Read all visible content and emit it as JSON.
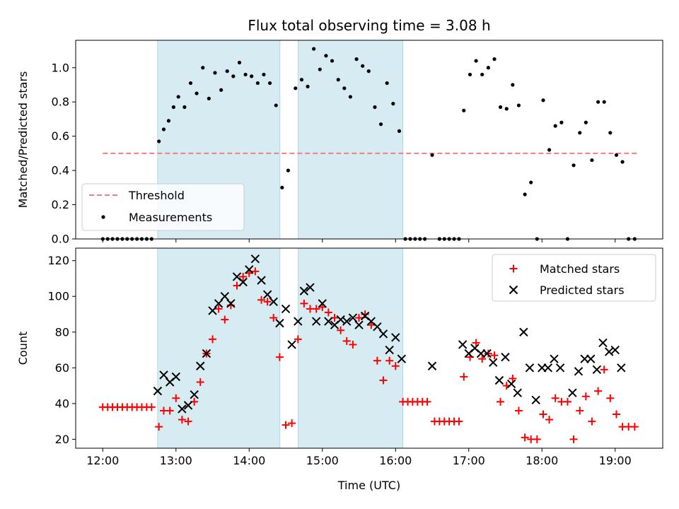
{
  "chart_data": {
    "type": "scatter",
    "title": "Flux total observing time = 3.08 h",
    "xlabel": "Time (UTC)",
    "x_ticks": [
      12,
      13,
      14,
      15,
      16,
      17,
      18,
      19
    ],
    "x_tick_labels": [
      "12:00",
      "13:00",
      "14:00",
      "15:00",
      "16:00",
      "17:00",
      "18:00",
      "19:00"
    ],
    "xlim": [
      11.63,
      19.65
    ],
    "observing_windows": [
      [
        12.75,
        14.42
      ],
      [
        14.67,
        16.1
      ]
    ],
    "window_color": "#add8e6",
    "top": {
      "ylabel": "Matched/Predicted stars",
      "ylim": [
        0,
        1.16
      ],
      "y_ticks": [
        0.0,
        0.2,
        0.4,
        0.6,
        0.8,
        1.0
      ],
      "y_tick_labels": [
        "0.0",
        "0.2",
        "0.4",
        "0.6",
        "0.8",
        "1.0"
      ],
      "threshold": {
        "name": "Threshold",
        "value": 0.5,
        "x_range": [
          12.0,
          19.3
        ],
        "color": "#f08080"
      },
      "measurements": {
        "name": "Measurements",
        "color": "#000000",
        "points": [
          [
            12.0,
            0
          ],
          [
            12.067,
            0
          ],
          [
            12.133,
            0
          ],
          [
            12.2,
            0
          ],
          [
            12.267,
            0
          ],
          [
            12.333,
            0
          ],
          [
            12.4,
            0
          ],
          [
            12.467,
            0
          ],
          [
            12.533,
            0
          ],
          [
            12.6,
            0
          ],
          [
            12.667,
            0
          ],
          [
            12.767,
            0.57
          ],
          [
            12.833,
            0.64
          ],
          [
            12.9,
            0.69
          ],
          [
            12.967,
            0.77
          ],
          [
            13.033,
            0.83
          ],
          [
            13.117,
            0.77
          ],
          [
            13.2,
            0.91
          ],
          [
            13.283,
            0.85
          ],
          [
            13.367,
            1.0
          ],
          [
            13.45,
            0.82
          ],
          [
            13.533,
            0.97
          ],
          [
            13.617,
            0.87
          ],
          [
            13.7,
            0.98
          ],
          [
            13.783,
            0.95
          ],
          [
            13.867,
            1.03
          ],
          [
            13.95,
            0.96
          ],
          [
            14.033,
            0.95
          ],
          [
            14.117,
            0.91
          ],
          [
            14.2,
            0.96
          ],
          [
            14.283,
            0.91
          ],
          [
            14.367,
            0.78
          ],
          [
            14.45,
            0.3
          ],
          [
            14.533,
            0.4
          ],
          [
            14.633,
            0.88
          ],
          [
            14.717,
            0.93
          ],
          [
            14.8,
            0.89
          ],
          [
            14.883,
            1.11
          ],
          [
            14.967,
            0.99
          ],
          [
            15.05,
            1.07
          ],
          [
            15.133,
            1.04
          ],
          [
            15.217,
            0.93
          ],
          [
            15.3,
            0.88
          ],
          [
            15.383,
            0.83
          ],
          [
            15.467,
            1.05
          ],
          [
            15.55,
            1.01
          ],
          [
            15.633,
            0.98
          ],
          [
            15.717,
            0.77
          ],
          [
            15.8,
            0.67
          ],
          [
            15.883,
            0.91
          ],
          [
            15.967,
            0.79
          ],
          [
            16.05,
            0.63
          ],
          [
            16.133,
            0
          ],
          [
            16.2,
            0
          ],
          [
            16.267,
            0
          ],
          [
            16.333,
            0
          ],
          [
            16.4,
            0
          ],
          [
            16.5,
            0.49
          ],
          [
            16.6,
            0
          ],
          [
            16.667,
            0
          ],
          [
            16.733,
            0
          ],
          [
            16.8,
            0
          ],
          [
            16.867,
            0
          ],
          [
            16.933,
            0.75
          ],
          [
            17.017,
            0.96
          ],
          [
            17.1,
            1.04
          ],
          [
            17.183,
            0.96
          ],
          [
            17.267,
            1.0
          ],
          [
            17.35,
            1.05
          ],
          [
            17.433,
            0.77
          ],
          [
            17.517,
            0.76
          ],
          [
            17.6,
            0.9
          ],
          [
            17.683,
            0.78
          ],
          [
            17.767,
            0.26
          ],
          [
            17.85,
            0.33
          ],
          [
            17.933,
            0
          ],
          [
            18.017,
            0.81
          ],
          [
            18.1,
            0.52
          ],
          [
            18.183,
            0.66
          ],
          [
            18.267,
            0.68
          ],
          [
            18.35,
            0
          ],
          [
            18.433,
            0.43
          ],
          [
            18.517,
            0.62
          ],
          [
            18.6,
            0.68
          ],
          [
            18.683,
            0.46
          ],
          [
            18.767,
            0.8
          ],
          [
            18.85,
            0.8
          ],
          [
            18.933,
            0.62
          ],
          [
            19.017,
            0.49
          ],
          [
            19.1,
            0.45
          ],
          [
            19.183,
            0
          ],
          [
            19.267,
            0
          ]
        ]
      },
      "legend_position": "lower left"
    },
    "bottom": {
      "ylabel": "Count",
      "ylim": [
        15,
        127
      ],
      "y_ticks": [
        20,
        40,
        60,
        80,
        100,
        120
      ],
      "y_tick_labels": [
        "20",
        "40",
        "60",
        "80",
        "100",
        "120"
      ],
      "legend_position": "upper right",
      "series": [
        {
          "name": "Matched stars",
          "marker": "+",
          "color": "#ff0000",
          "points": [
            [
              12.0,
              38
            ],
            [
              12.067,
              38
            ],
            [
              12.133,
              38
            ],
            [
              12.2,
              38
            ],
            [
              12.267,
              38
            ],
            [
              12.333,
              38
            ],
            [
              12.4,
              38
            ],
            [
              12.467,
              38
            ],
            [
              12.533,
              38
            ],
            [
              12.6,
              38
            ],
            [
              12.667,
              38
            ],
            [
              12.767,
              27
            ],
            [
              12.833,
              36
            ],
            [
              12.917,
              36
            ],
            [
              13.0,
              43
            ],
            [
              13.083,
              31
            ],
            [
              13.167,
              30
            ],
            [
              13.25,
              41
            ],
            [
              13.333,
              52
            ],
            [
              13.417,
              68
            ],
            [
              13.5,
              76
            ],
            [
              13.583,
              93
            ],
            [
              13.667,
              87
            ],
            [
              13.75,
              95
            ],
            [
              13.833,
              106
            ],
            [
              13.917,
              111
            ],
            [
              14.0,
              113
            ],
            [
              14.083,
              114
            ],
            [
              14.167,
              98
            ],
            [
              14.25,
              97
            ],
            [
              14.333,
              88
            ],
            [
              14.417,
              66
            ],
            [
              14.5,
              28
            ],
            [
              14.583,
              29
            ],
            [
              14.667,
              76
            ],
            [
              14.75,
              96
            ],
            [
              14.833,
              93
            ],
            [
              14.917,
              93
            ],
            [
              15.0,
              94
            ],
            [
              15.083,
              91
            ],
            [
              15.167,
              88
            ],
            [
              15.25,
              81
            ],
            [
              15.333,
              75
            ],
            [
              15.417,
              73
            ],
            [
              15.5,
              88
            ],
            [
              15.583,
              90
            ],
            [
              15.667,
              84
            ],
            [
              15.75,
              64
            ],
            [
              15.833,
              53
            ],
            [
              15.917,
              64
            ],
            [
              16.0,
              61
            ],
            [
              16.1,
              41
            ],
            [
              16.167,
              41
            ],
            [
              16.233,
              41
            ],
            [
              16.3,
              41
            ],
            [
              16.367,
              41
            ],
            [
              16.433,
              41
            ],
            [
              16.533,
              30
            ],
            [
              16.6,
              30
            ],
            [
              16.667,
              30
            ],
            [
              16.733,
              30
            ],
            [
              16.8,
              30
            ],
            [
              16.867,
              30
            ],
            [
              16.933,
              55
            ],
            [
              17.017,
              66
            ],
            [
              17.1,
              74
            ],
            [
              17.183,
              65
            ],
            [
              17.267,
              68
            ],
            [
              17.35,
              67
            ],
            [
              17.433,
              41
            ],
            [
              17.517,
              50
            ],
            [
              17.6,
              54
            ],
            [
              17.683,
              36
            ],
            [
              17.767,
              21
            ],
            [
              17.85,
              20
            ],
            [
              17.933,
              20
            ],
            [
              18.017,
              34
            ],
            [
              18.1,
              31
            ],
            [
              18.183,
              43
            ],
            [
              18.267,
              41
            ],
            [
              18.35,
              41
            ],
            [
              18.433,
              20
            ],
            [
              18.517,
              36
            ],
            [
              18.6,
              44
            ],
            [
              18.683,
              30
            ],
            [
              18.767,
              47
            ],
            [
              18.85,
              59
            ],
            [
              18.933,
              43
            ],
            [
              19.017,
              34
            ],
            [
              19.1,
              27
            ],
            [
              19.183,
              27
            ],
            [
              19.267,
              27
            ]
          ]
        },
        {
          "name": "Predicted stars",
          "marker": "x",
          "color": "#000000",
          "points": [
            [
              12.75,
              47
            ],
            [
              12.833,
              56
            ],
            [
              12.917,
              52
            ],
            [
              13.0,
              55
            ],
            [
              13.083,
              37
            ],
            [
              13.167,
              39
            ],
            [
              13.25,
              45
            ],
            [
              13.333,
              61
            ],
            [
              13.417,
              68
            ],
            [
              13.5,
              92
            ],
            [
              13.583,
              96
            ],
            [
              13.667,
              100
            ],
            [
              13.75,
              96
            ],
            [
              13.833,
              111
            ],
            [
              13.917,
              108
            ],
            [
              14.0,
              115
            ],
            [
              14.083,
              121
            ],
            [
              14.167,
              109
            ],
            [
              14.25,
              101
            ],
            [
              14.333,
              97
            ],
            [
              14.417,
              85
            ],
            [
              14.5,
              93
            ],
            [
              14.583,
              73
            ],
            [
              14.667,
              86
            ],
            [
              14.75,
              103
            ],
            [
              14.833,
              105
            ],
            [
              14.917,
              86
            ],
            [
              15.0,
              96
            ],
            [
              15.083,
              86
            ],
            [
              15.167,
              84
            ],
            [
              15.25,
              87
            ],
            [
              15.333,
              86
            ],
            [
              15.417,
              88
            ],
            [
              15.5,
              84
            ],
            [
              15.583,
              89
            ],
            [
              15.667,
              86
            ],
            [
              15.75,
              83
            ],
            [
              15.833,
              79
            ],
            [
              15.917,
              70
            ],
            [
              16.0,
              77
            ],
            [
              16.083,
              65
            ],
            [
              16.5,
              61
            ],
            [
              16.917,
              73
            ],
            [
              17.0,
              68
            ],
            [
              17.083,
              71
            ],
            [
              17.167,
              68
            ],
            [
              17.25,
              68
            ],
            [
              17.333,
              63
            ],
            [
              17.417,
              53
            ],
            [
              17.5,
              66
            ],
            [
              17.583,
              51
            ],
            [
              17.667,
              46
            ],
            [
              17.75,
              80
            ],
            [
              17.833,
              60
            ],
            [
              17.917,
              42
            ],
            [
              18.0,
              60
            ],
            [
              18.083,
              60
            ],
            [
              18.167,
              65
            ],
            [
              18.25,
              60
            ],
            [
              18.417,
              46
            ],
            [
              18.5,
              58
            ],
            [
              18.583,
              65
            ],
            [
              18.667,
              65
            ],
            [
              18.75,
              59
            ],
            [
              18.833,
              74
            ],
            [
              18.917,
              69
            ],
            [
              19.0,
              70
            ],
            [
              19.083,
              60
            ]
          ]
        }
      ]
    }
  }
}
